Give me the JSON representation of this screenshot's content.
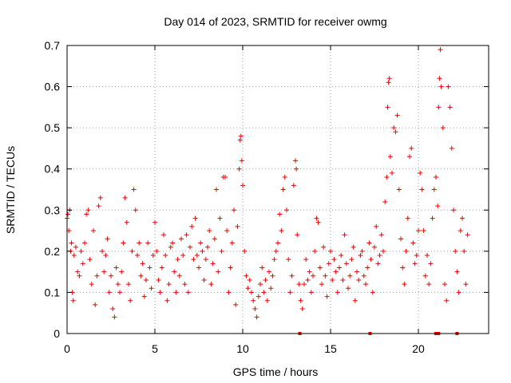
{
  "chart_data": {
    "type": "scatter",
    "title": "Day 014 of 2023, SRMTID for receiver owmg",
    "xlabel": "GPS time / hours",
    "ylabel": "SRMTID / TECUs",
    "xlim": [
      0,
      24
    ],
    "ylim": [
      0,
      0.7
    ],
    "xticks": [
      0,
      5,
      10,
      15,
      20
    ],
    "xtick_labels": [
      "0",
      "5",
      "10",
      "15",
      "20"
    ],
    "yticks": [
      0,
      0.1,
      0.2,
      0.3,
      0.4,
      0.5,
      0.6,
      0.7
    ],
    "ytick_labels": [
      "0",
      "0.1",
      "0.2",
      "0.3",
      "0.4",
      "0.5",
      "0.6",
      "0.7"
    ],
    "grid": true,
    "marker": "+",
    "color": "#ee0000",
    "series": [
      {
        "name": "SRMTID",
        "points": [
          [
            0.0,
            0.28
          ],
          [
            0.05,
            0.29
          ],
          [
            0.1,
            0.25
          ],
          [
            0.15,
            0.3
          ],
          [
            0.2,
            0.2
          ],
          [
            0.25,
            0.22
          ],
          [
            0.3,
            0.1
          ],
          [
            0.35,
            0.08
          ],
          [
            0.4,
            0.19
          ],
          [
            0.5,
            0.21
          ],
          [
            0.6,
            0.15
          ],
          [
            0.7,
            0.14
          ],
          [
            0.8,
            0.2
          ],
          [
            0.9,
            0.17
          ],
          [
            1.0,
            0.22
          ],
          [
            1.1,
            0.29
          ],
          [
            1.2,
            0.3
          ],
          [
            1.3,
            0.18
          ],
          [
            1.4,
            0.12
          ],
          [
            1.5,
            0.25
          ],
          [
            1.6,
            0.07
          ],
          [
            1.7,
            0.14
          ],
          [
            1.8,
            0.31
          ],
          [
            1.9,
            0.33
          ],
          [
            2.0,
            0.2
          ],
          [
            2.1,
            0.15
          ],
          [
            2.2,
            0.19
          ],
          [
            2.3,
            0.23
          ],
          [
            2.4,
            0.1
          ],
          [
            2.5,
            0.14
          ],
          [
            2.6,
            0.06
          ],
          [
            2.7,
            0.04
          ],
          [
            2.8,
            0.16
          ],
          [
            2.9,
            0.12
          ],
          [
            3.0,
            0.1
          ],
          [
            3.1,
            0.15
          ],
          [
            3.2,
            0.22
          ],
          [
            3.3,
            0.33
          ],
          [
            3.4,
            0.27
          ],
          [
            3.5,
            0.12
          ],
          [
            3.6,
            0.08
          ],
          [
            3.7,
            0.2
          ],
          [
            3.8,
            0.35
          ],
          [
            3.9,
            0.3
          ],
          [
            4.0,
            0.19
          ],
          [
            4.1,
            0.22
          ],
          [
            4.2,
            0.14
          ],
          [
            4.3,
            0.17
          ],
          [
            4.4,
            0.09
          ],
          [
            4.5,
            0.13
          ],
          [
            4.6,
            0.22
          ],
          [
            4.7,
            0.16
          ],
          [
            4.8,
            0.11
          ],
          [
            4.9,
            0.19
          ],
          [
            5.0,
            0.27
          ],
          [
            5.1,
            0.2
          ],
          [
            5.2,
            0.13
          ],
          [
            5.3,
            0.1
          ],
          [
            5.4,
            0.16
          ],
          [
            5.5,
            0.24
          ],
          [
            5.6,
            0.19
          ],
          [
            5.7,
            0.08
          ],
          [
            5.8,
            0.12
          ],
          [
            5.9,
            0.21
          ],
          [
            6.0,
            0.22
          ],
          [
            6.1,
            0.15
          ],
          [
            6.2,
            0.1
          ],
          [
            6.3,
            0.18
          ],
          [
            6.4,
            0.14
          ],
          [
            6.5,
            0.23
          ],
          [
            6.6,
            0.19
          ],
          [
            6.7,
            0.12
          ],
          [
            6.8,
            0.24
          ],
          [
            6.9,
            0.1
          ],
          [
            7.0,
            0.21
          ],
          [
            7.1,
            0.26
          ],
          [
            7.2,
            0.18
          ],
          [
            7.3,
            0.28
          ],
          [
            7.4,
            0.19
          ],
          [
            7.5,
            0.16
          ],
          [
            7.6,
            0.22
          ],
          [
            7.7,
            0.2
          ],
          [
            7.8,
            0.13
          ],
          [
            7.9,
            0.18
          ],
          [
            8.0,
            0.21
          ],
          [
            8.1,
            0.25
          ],
          [
            8.2,
            0.12
          ],
          [
            8.3,
            0.17
          ],
          [
            8.4,
            0.23
          ],
          [
            8.5,
            0.35
          ],
          [
            8.6,
            0.15
          ],
          [
            8.7,
            0.28
          ],
          [
            8.8,
            0.2
          ],
          [
            8.9,
            0.38
          ],
          [
            9.0,
            0.38
          ],
          [
            9.1,
            0.25
          ],
          [
            9.2,
            0.1
          ],
          [
            9.3,
            0.16
          ],
          [
            9.4,
            0.22
          ],
          [
            9.5,
            0.3
          ],
          [
            9.6,
            0.07
          ],
          [
            9.7,
            0.26
          ],
          [
            9.8,
            0.4
          ],
          [
            9.85,
            0.47
          ],
          [
            9.9,
            0.48
          ],
          [
            9.95,
            0.42
          ],
          [
            10.0,
            0.36
          ],
          [
            10.1,
            0.2
          ],
          [
            10.2,
            0.14
          ],
          [
            10.3,
            0.11
          ],
          [
            10.4,
            0.13
          ],
          [
            10.5,
            0.1
          ],
          [
            10.6,
            0.08
          ],
          [
            10.7,
            0.06
          ],
          [
            10.8,
            0.04
          ],
          [
            10.9,
            0.09
          ],
          [
            11.0,
            0.12
          ],
          [
            11.1,
            0.16
          ],
          [
            11.2,
            0.1
          ],
          [
            11.3,
            0.13
          ],
          [
            11.4,
            0.08
          ],
          [
            11.5,
            0.15
          ],
          [
            11.6,
            0.11
          ],
          [
            11.7,
            0.14
          ],
          [
            11.8,
            0.18
          ],
          [
            11.9,
            0.2
          ],
          [
            12.0,
            0.22
          ],
          [
            12.1,
            0.29
          ],
          [
            12.2,
            0.25
          ],
          [
            12.3,
            0.35
          ],
          [
            12.4,
            0.38
          ],
          [
            12.5,
            0.3
          ],
          [
            12.6,
            0.18
          ],
          [
            12.7,
            0.1
          ],
          [
            12.8,
            0.14
          ],
          [
            12.9,
            0.36
          ],
          [
            13.0,
            0.42
          ],
          [
            13.05,
            0.4
          ],
          [
            13.1,
            0.24
          ],
          [
            13.2,
            0.12
          ],
          [
            13.3,
            0.08
          ],
          [
            13.4,
            0.06
          ],
          [
            13.5,
            0.12
          ],
          [
            13.6,
            0.18
          ],
          [
            13.7,
            0.13
          ],
          [
            13.8,
            0.15
          ],
          [
            13.9,
            0.1
          ],
          [
            14.0,
            0.14
          ],
          [
            14.1,
            0.2
          ],
          [
            14.2,
            0.28
          ],
          [
            14.3,
            0.27
          ],
          [
            14.4,
            0.16
          ],
          [
            14.5,
            0.12
          ],
          [
            14.6,
            0.21
          ],
          [
            14.7,
            0.14
          ],
          [
            14.8,
            0.09
          ],
          [
            14.9,
            0.17
          ],
          [
            15.0,
            0.2
          ],
          [
            15.1,
            0.13
          ],
          [
            15.2,
            0.18
          ],
          [
            15.3,
            0.15
          ],
          [
            15.4,
            0.1
          ],
          [
            15.5,
            0.16
          ],
          [
            15.6,
            0.19
          ],
          [
            15.7,
            0.13
          ],
          [
            15.8,
            0.24
          ],
          [
            15.9,
            0.17
          ],
          [
            16.0,
            0.11
          ],
          [
            16.1,
            0.14
          ],
          [
            16.2,
            0.18
          ],
          [
            16.3,
            0.21
          ],
          [
            16.4,
            0.08
          ],
          [
            16.5,
            0.15
          ],
          [
            16.6,
            0.13
          ],
          [
            16.7,
            0.19
          ],
          [
            16.8,
            0.2
          ],
          [
            16.9,
            0.14
          ],
          [
            17.0,
            0.12
          ],
          [
            17.1,
            0.16
          ],
          [
            17.2,
            0.22
          ],
          [
            17.3,
            0.18
          ],
          [
            17.4,
            0.1
          ],
          [
            17.5,
            0.21
          ],
          [
            17.6,
            0.26
          ],
          [
            17.7,
            0.17
          ],
          [
            17.8,
            0.19
          ],
          [
            17.9,
            0.24
          ],
          [
            18.0,
            0.2
          ],
          [
            18.1,
            0.32
          ],
          [
            18.2,
            0.38
          ],
          [
            18.25,
            0.55
          ],
          [
            18.3,
            0.61
          ],
          [
            18.35,
            0.62
          ],
          [
            18.4,
            0.43
          ],
          [
            18.5,
            0.39
          ],
          [
            18.6,
            0.5
          ],
          [
            18.7,
            0.49
          ],
          [
            18.8,
            0.53
          ],
          [
            18.9,
            0.35
          ],
          [
            19.0,
            0.23
          ],
          [
            19.1,
            0.16
          ],
          [
            19.2,
            0.12
          ],
          [
            19.3,
            0.2
          ],
          [
            19.4,
            0.28
          ],
          [
            19.5,
            0.43
          ],
          [
            19.6,
            0.45
          ],
          [
            19.7,
            0.22
          ],
          [
            19.8,
            0.17
          ],
          [
            19.9,
            0.19
          ],
          [
            20.0,
            0.25
          ],
          [
            20.1,
            0.39
          ],
          [
            20.2,
            0.35
          ],
          [
            20.3,
            0.25
          ],
          [
            20.4,
            0.14
          ],
          [
            20.5,
            0.19
          ],
          [
            20.6,
            0.12
          ],
          [
            20.7,
            0.17
          ],
          [
            20.8,
            0.28
          ],
          [
            20.9,
            0.35
          ],
          [
            21.0,
            0.38
          ],
          [
            21.1,
            0.31
          ],
          [
            21.15,
            0.55
          ],
          [
            21.2,
            0.62
          ],
          [
            21.25,
            0.69
          ],
          [
            21.3,
            0.6
          ],
          [
            21.4,
            0.5
          ],
          [
            21.5,
            0.12
          ],
          [
            21.6,
            0.08
          ],
          [
            21.7,
            0.6
          ],
          [
            21.8,
            0.55
          ],
          [
            21.9,
            0.45
          ],
          [
            22.0,
            0.3
          ],
          [
            22.1,
            0.2
          ],
          [
            22.2,
            0.15
          ],
          [
            22.3,
            0.1
          ],
          [
            22.4,
            0.25
          ],
          [
            22.5,
            0.28
          ],
          [
            22.6,
            0.2
          ],
          [
            22.7,
            0.12
          ],
          [
            22.8,
            0.24
          ]
        ]
      }
    ],
    "gap_markers_x": [
      13.25,
      17.25,
      21.0,
      21.15,
      22.2
    ]
  }
}
